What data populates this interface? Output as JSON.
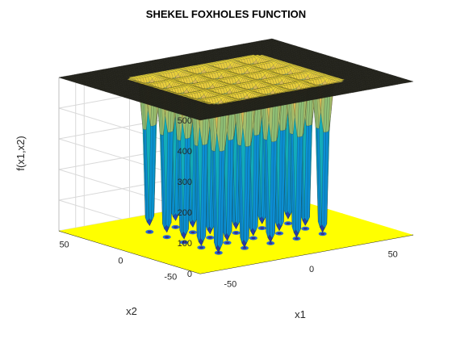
{
  "chart_data": {
    "type": "surface3d",
    "title": "SHEKEL FOXHOLES FUNCTION",
    "xlabel": "x1",
    "ylabel": "x2",
    "zlabel": "f(x1,x2)",
    "xlim": [
      -65.536,
      65.536
    ],
    "ylim": [
      -65.536,
      65.536
    ],
    "zlim": [
      0,
      500
    ],
    "x_ticks": [
      -50,
      0,
      50
    ],
    "y_ticks": [
      -50,
      0,
      50
    ],
    "z_ticks": [
      0,
      100,
      200,
      300,
      400,
      500
    ],
    "foxhole_grid": [
      -32,
      -16,
      0,
      16,
      32
    ],
    "plateau_value": 500,
    "minimum_value": 1,
    "grid": true,
    "colormap": "parula",
    "floor_contour_color": "#ffff00"
  }
}
